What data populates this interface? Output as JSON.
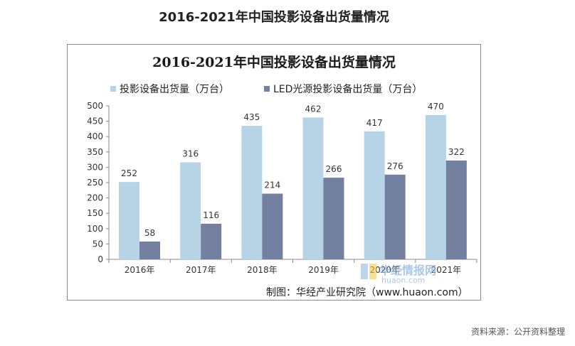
{
  "page_title": "2016-2021年中国投影设备出货量情况",
  "source_text": "资料来源：公开资料整理",
  "watermark": {
    "name": "华经情报网",
    "domain": "huaon.com"
  },
  "colors": {
    "series1": "#b7d3e6",
    "series2": "#73809f",
    "axis": "#8a8a8a"
  },
  "chart_data": {
    "type": "bar",
    "title": "2016-2021年中国投影设备出货量情况",
    "categories": [
      "2016年",
      "2017年",
      "2018年",
      "2019年",
      "2020年",
      "2021年"
    ],
    "series": [
      {
        "name": "投影设备出货量（万台）",
        "values": [
          252,
          316,
          435,
          462,
          417,
          470
        ]
      },
      {
        "name": "LED光源投影设备出货量（万台）",
        "values": [
          58,
          116,
          214,
          266,
          276,
          322
        ]
      }
    ],
    "ylim": [
      0,
      500
    ],
    "yticks": [
      0,
      50,
      100,
      150,
      200,
      250,
      300,
      350,
      400,
      450,
      500
    ],
    "xlabel": "",
    "ylabel": "",
    "legend": "top-left",
    "grid": false,
    "note": "制图：华经产业研究院（www.huaon.com）"
  }
}
